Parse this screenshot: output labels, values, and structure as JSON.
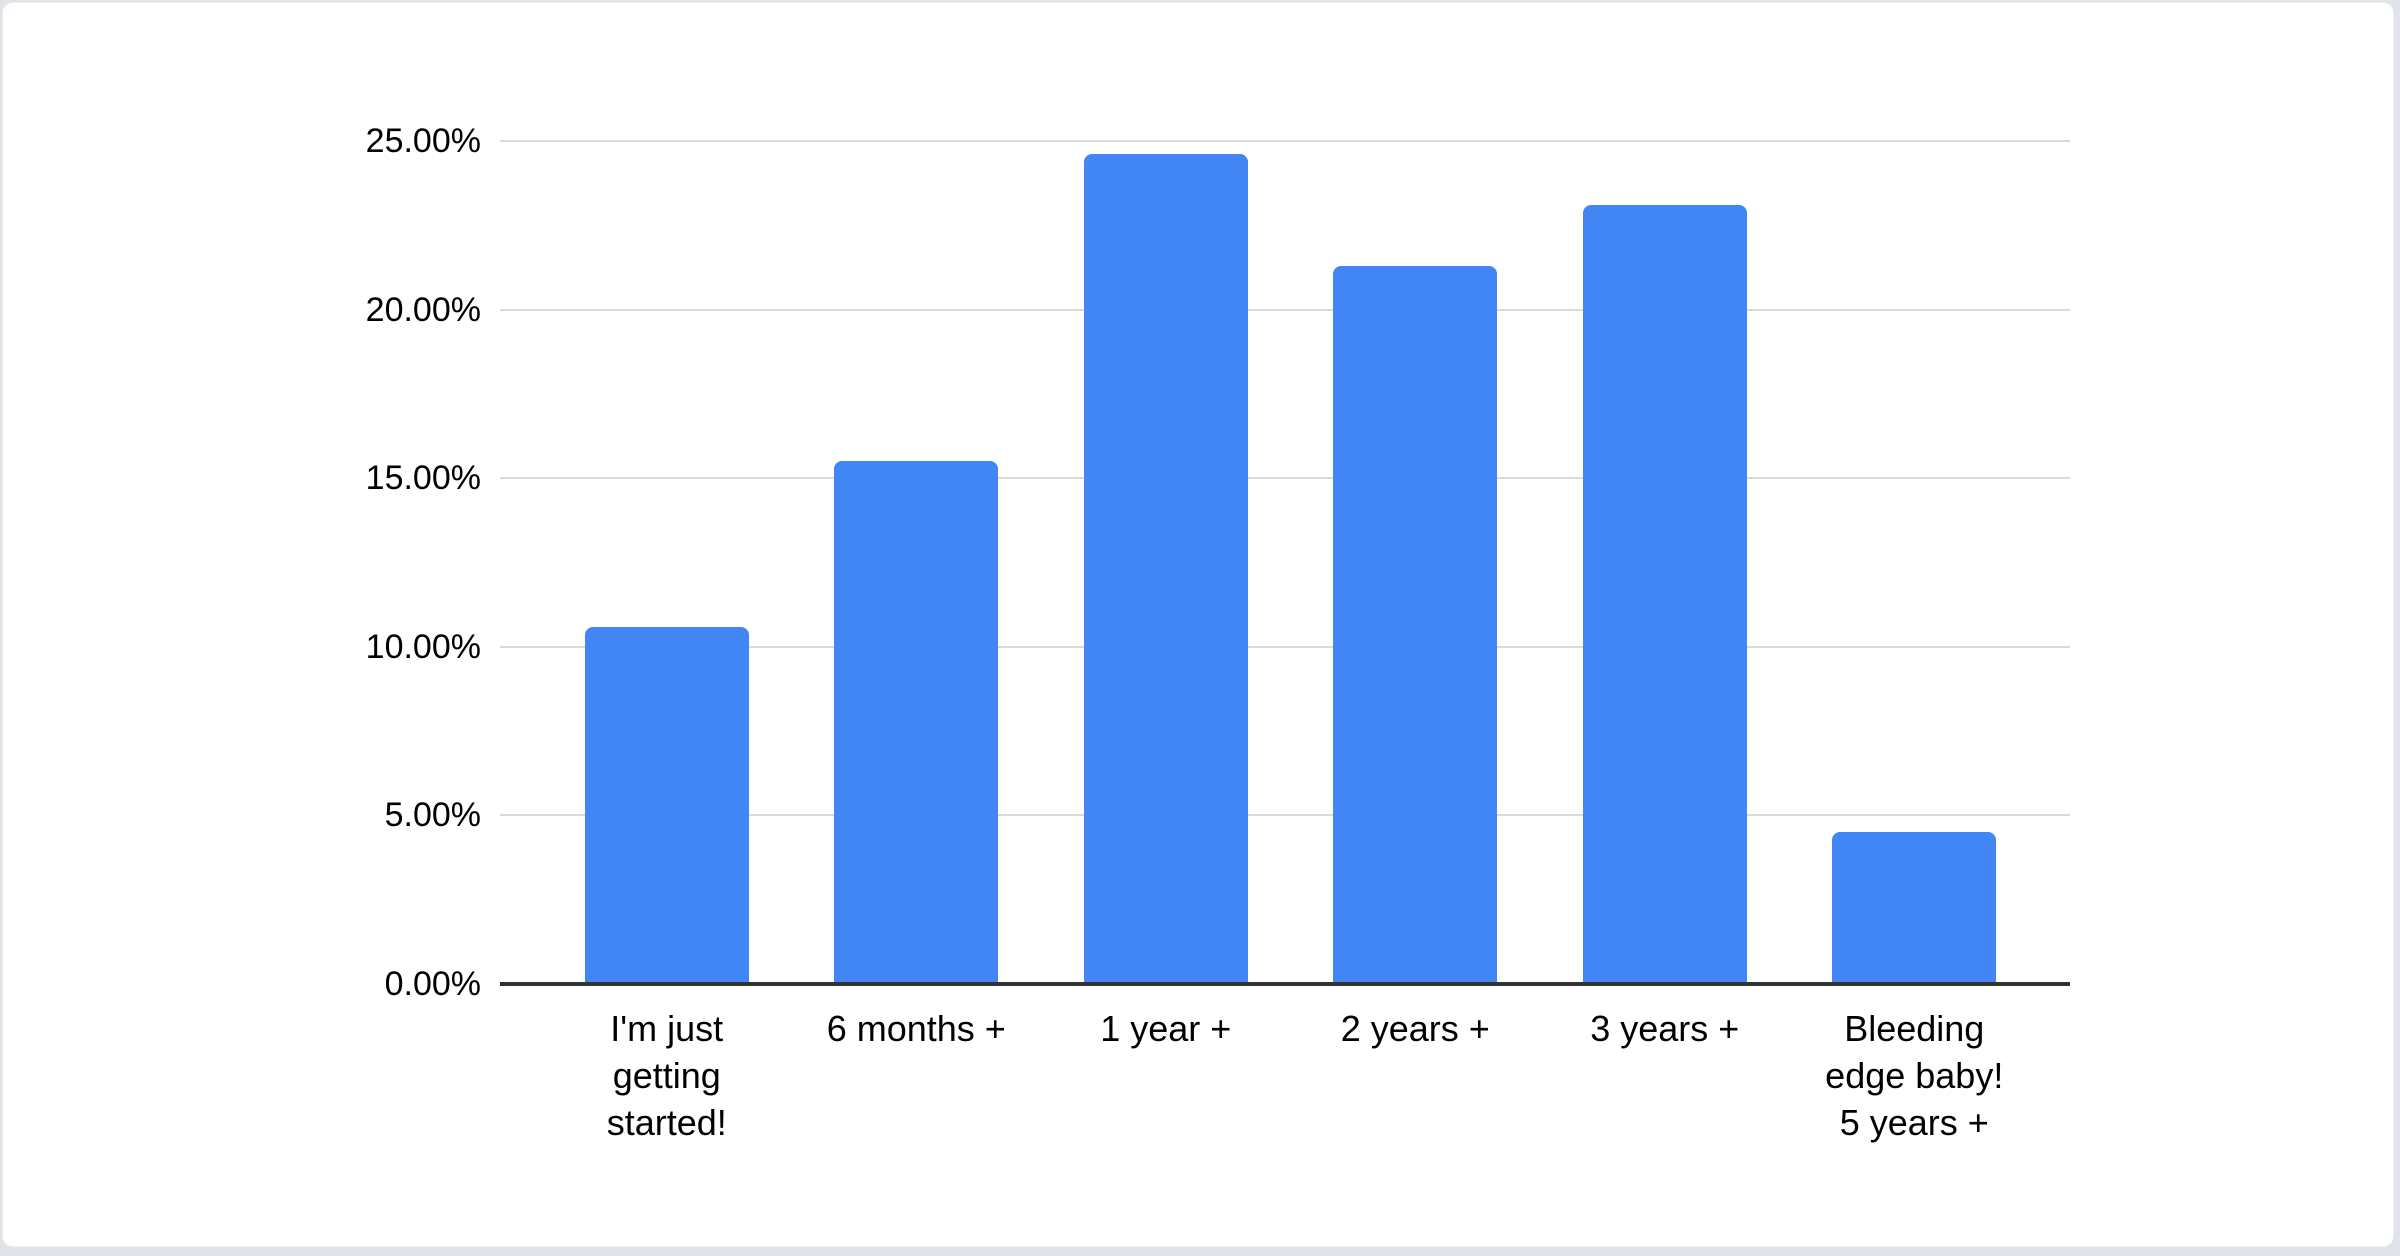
{
  "chart_data": {
    "type": "bar",
    "title": "",
    "categories": [
      "I'm just getting started!",
      "6 months +",
      "1 year +",
      "2 years +",
      "3 years +",
      "Bleeding edge baby! 5 years +"
    ],
    "category_lines": [
      [
        "I'm just",
        "getting",
        "started!"
      ],
      [
        "6 months +"
      ],
      [
        "1 year +"
      ],
      [
        "2 years +"
      ],
      [
        "3 years +"
      ],
      [
        "Bleeding",
        "edge baby!",
        "5 years +"
      ]
    ],
    "values": [
      10.6,
      15.5,
      24.6,
      21.3,
      23.1,
      4.5
    ],
    "value_unit": "%",
    "xlabel": "",
    "ylabel": "",
    "ylim": [
      0,
      25
    ],
    "grid": true,
    "legend": "none",
    "yticks": [
      {
        "value": 0,
        "label": "0.00%"
      },
      {
        "value": 5,
        "label": "5.00%"
      },
      {
        "value": 10,
        "label": "10.00%"
      },
      {
        "value": 15,
        "label": "15.00%"
      },
      {
        "value": 20,
        "label": "20.00%"
      },
      {
        "value": 25,
        "label": "25.00%"
      }
    ],
    "colors": {
      "bar": "#4285f4",
      "gridline": "#d9d9d9",
      "axis_line": "#333333",
      "label_text": "#000000",
      "card_background": "#ffffff",
      "page_background": "#e0e3e7"
    }
  }
}
